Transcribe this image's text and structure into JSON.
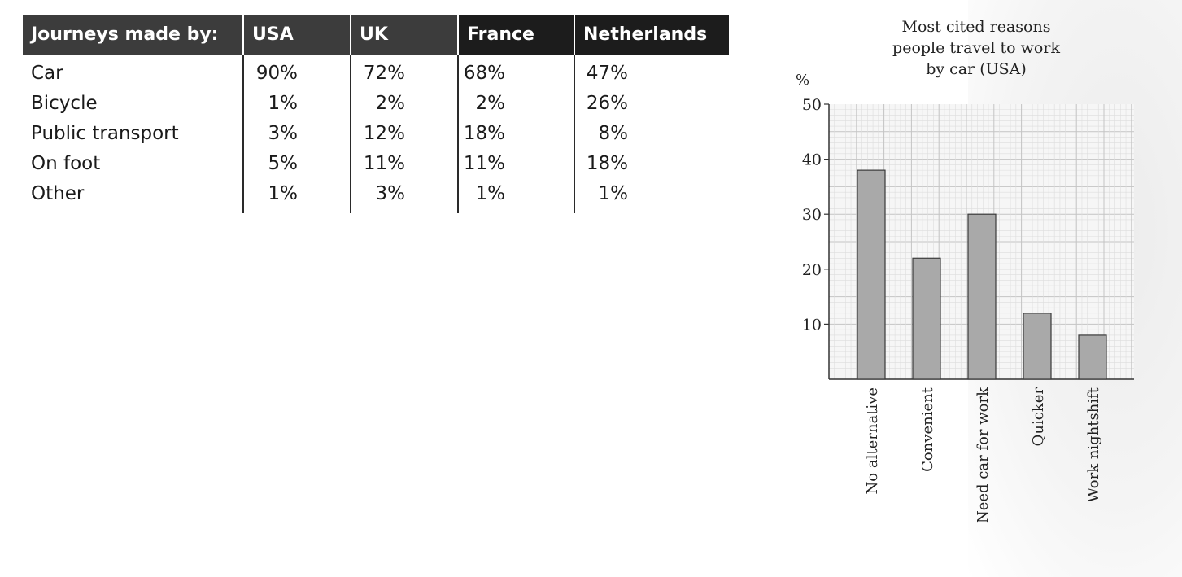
{
  "table": {
    "header": [
      "Journeys made by:",
      "USA",
      "UK",
      "France",
      "Netherlands"
    ],
    "rows": [
      [
        "Car",
        "90%",
        "72%",
        "68%",
        "47%"
      ],
      [
        "Bicycle",
        "1%",
        "2%",
        "2%",
        "26%"
      ],
      [
        "Public transport",
        "3%",
        "12%",
        "18%",
        "8%"
      ],
      [
        "On foot",
        "5%",
        "11%",
        "11%",
        "18%"
      ],
      [
        "Other",
        "1%",
        "3%",
        "1%",
        "1%"
      ]
    ]
  },
  "chart_data": {
    "type": "bar",
    "title_lines": [
      "Most cited reasons",
      "people travel to work",
      "by car (USA)"
    ],
    "ylabel": "%",
    "categories": [
      "No alternative",
      "Convenient",
      "Need car for work",
      "Quicker",
      "Work nightshift"
    ],
    "values": [
      38,
      22,
      30,
      12,
      8
    ],
    "ylim": [
      0,
      50
    ],
    "yticks": [
      10,
      20,
      30,
      40,
      50
    ],
    "grid": true,
    "bar_color": "#a9a9a9"
  }
}
